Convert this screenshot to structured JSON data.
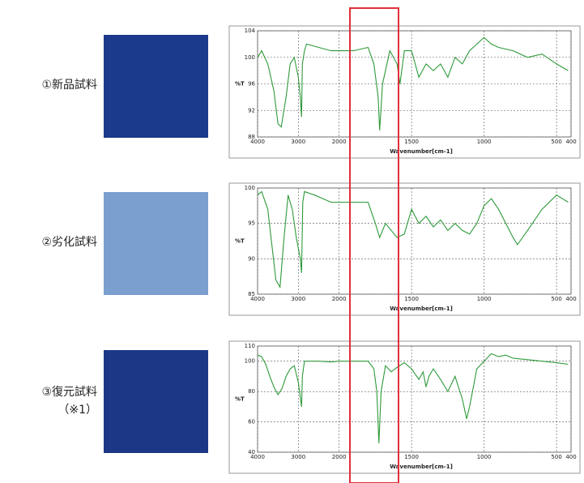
{
  "chart_data": [
    {
      "type": "line",
      "sample_label": "①新品試料",
      "sample_color": "#1b3a8c",
      "x_label": "Wavenumber[cm-1]",
      "y_label": "%T",
      "x_split": 2000,
      "xlim": [
        4000,
        400
      ],
      "xticks": [
        4000,
        3000,
        2000,
        1500,
        1000,
        500,
        400
      ],
      "ylim": [
        88,
        104
      ],
      "yticks": [
        104,
        100,
        96,
        92,
        88
      ],
      "grid": true,
      "color": "#2e9a3a",
      "x": [
        4000,
        3900,
        3750,
        3600,
        3500,
        3420,
        3300,
        3200,
        3100,
        3000,
        2950,
        2920,
        2900,
        2850,
        2800,
        2500,
        2200,
        2000,
        1900,
        1800,
        1760,
        1730,
        1720,
        1700,
        1650,
        1600,
        1580,
        1550,
        1500,
        1450,
        1400,
        1350,
        1300,
        1250,
        1200,
        1150,
        1100,
        1050,
        1000,
        950,
        900,
        800,
        700,
        600,
        500,
        420
      ],
      "values": [
        100,
        101,
        99,
        95,
        90,
        89.5,
        94,
        99,
        100,
        97,
        94,
        91,
        99,
        101,
        102,
        101.5,
        101,
        101,
        101,
        101.5,
        99,
        94,
        89,
        96,
        101,
        99,
        96,
        101,
        101,
        97,
        99,
        98,
        99,
        97,
        100,
        99,
        101,
        102,
        103,
        102,
        101.5,
        101,
        100,
        100.5,
        99,
        98
      ]
    },
    {
      "type": "line",
      "sample_label": "②劣化試料",
      "sample_color": "#7b9fcf",
      "x_label": "Wavenumber[cm-1]",
      "y_label": "%T",
      "x_split": 2000,
      "xlim": [
        4000,
        400
      ],
      "xticks": [
        4000,
        3000,
        2000,
        1500,
        1000,
        500,
        400
      ],
      "ylim": [
        85,
        100
      ],
      "yticks": [
        100,
        95,
        90,
        85
      ],
      "grid": true,
      "color": "#2e9a3a",
      "x": [
        4000,
        3900,
        3750,
        3650,
        3550,
        3450,
        3350,
        3250,
        3150,
        3050,
        2950,
        2920,
        2890,
        2850,
        2600,
        2200,
        2000,
        1900,
        1800,
        1750,
        1720,
        1680,
        1600,
        1550,
        1500,
        1450,
        1400,
        1350,
        1300,
        1250,
        1200,
        1150,
        1100,
        1050,
        1000,
        950,
        900,
        850,
        800,
        770,
        700,
        600,
        500,
        420
      ],
      "values": [
        99,
        99.5,
        97,
        92,
        87,
        86,
        93,
        99,
        97,
        93,
        90,
        88,
        98,
        99.5,
        99,
        98,
        98,
        98,
        98,
        95,
        93,
        95,
        93,
        93.5,
        97,
        95,
        96,
        94.5,
        95.5,
        94,
        95,
        94,
        93.5,
        95,
        97.5,
        98.5,
        97,
        95,
        93,
        92,
        94,
        97,
        99,
        98
      ]
    },
    {
      "type": "line",
      "sample_label": "③復元試料",
      "sample_note": "（※1）",
      "sample_color": "#1c3785",
      "x_label": "Wavenumber[cm-1]",
      "y_label": "%T",
      "x_split": 2000,
      "xlim": [
        4000,
        400
      ],
      "xticks": [
        4000,
        3000,
        2000,
        1500,
        1000,
        500,
        400
      ],
      "ylim": [
        40,
        110
      ],
      "yticks": [
        110,
        100,
        80,
        60,
        40
      ],
      "grid": true,
      "color": "#2e9a3a",
      "x": [
        4000,
        3900,
        3800,
        3700,
        3600,
        3500,
        3400,
        3300,
        3200,
        3100,
        3000,
        2950,
        2920,
        2900,
        2850,
        2500,
        2200,
        2000,
        1900,
        1800,
        1760,
        1740,
        1725,
        1710,
        1680,
        1640,
        1600,
        1550,
        1500,
        1450,
        1420,
        1400,
        1380,
        1350,
        1300,
        1250,
        1200,
        1150,
        1120,
        1100,
        1080,
        1050,
        1000,
        950,
        900,
        850,
        800,
        700,
        600,
        500,
        420
      ],
      "values": [
        104,
        103,
        98,
        90,
        83,
        78,
        82,
        90,
        95,
        97,
        86,
        76,
        70,
        90,
        100,
        100,
        99.5,
        100,
        100,
        100,
        95,
        80,
        46,
        80,
        97,
        93,
        96,
        99,
        95,
        88,
        93,
        83,
        90,
        95,
        88,
        80,
        90,
        75,
        62,
        70,
        80,
        95,
        100,
        105,
        103,
        104,
        102,
        101,
        100,
        99,
        98
      ]
    }
  ]
}
